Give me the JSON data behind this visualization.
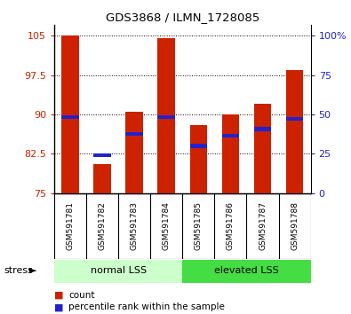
{
  "title": "GDS3868 / ILMN_1728085",
  "categories": [
    "GSM591781",
    "GSM591782",
    "GSM591783",
    "GSM591784",
    "GSM591785",
    "GSM591786",
    "GSM591787",
    "GSM591788"
  ],
  "bar_tops": [
    105,
    80.5,
    90.5,
    104.5,
    88,
    90,
    92,
    98.5
  ],
  "bar_base": 75,
  "percentile_values": [
    89.5,
    82.2,
    86.2,
    89.5,
    84.0,
    86.0,
    87.2,
    89.2
  ],
  "ylim_left": [
    75,
    107
  ],
  "yticks_left": [
    75,
    82.5,
    90,
    97.5,
    105
  ],
  "ytick_labels_left": [
    "75",
    "82.5",
    "90",
    "97.5",
    "105"
  ],
  "ylim_right": [
    0,
    106.67
  ],
  "yticks_right": [
    0,
    25,
    50,
    75,
    100
  ],
  "ytick_labels_right": [
    "0",
    "25",
    "50",
    "75",
    "100%"
  ],
  "bar_color": "#cc2200",
  "percentile_color": "#2222cc",
  "group1_label": "normal LSS",
  "group2_label": "elevated LSS",
  "group1_indices": [
    0,
    1,
    2,
    3
  ],
  "group2_indices": [
    4,
    5,
    6,
    7
  ],
  "group1_color": "#ccffcc",
  "group2_color": "#44dd44",
  "stress_label": "stress",
  "legend_count_label": "count",
  "legend_percentile_label": "percentile rank within the sample",
  "bg_color": "#ffffff",
  "plot_bg_color": "#ffffff",
  "tick_label_color_left": "#cc2200",
  "tick_label_color_right": "#2222cc",
  "grid_color": "#000000",
  "bar_width": 0.55,
  "xlab_bg_color": "#cccccc",
  "xlab_border_color": "#000000"
}
